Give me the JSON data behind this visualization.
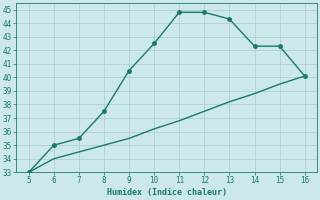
{
  "x": [
    5,
    6,
    7,
    8,
    9,
    10,
    11,
    12,
    13,
    14,
    15,
    16
  ],
  "y_upper": [
    33,
    35,
    35.5,
    37.5,
    40.5,
    42.5,
    44.8,
    44.8,
    44.3,
    42.3,
    42.3,
    40.1
  ],
  "y_lower": [
    33,
    34,
    34.5,
    35,
    35.5,
    36.2,
    36.8,
    37.5,
    38.2,
    38.8,
    39.5,
    40.1
  ],
  "xlim": [
    4.5,
    16.5
  ],
  "ylim": [
    33,
    45.5
  ],
  "xticks": [
    5,
    6,
    7,
    8,
    9,
    10,
    11,
    12,
    13,
    14,
    15,
    16
  ],
  "yticks": [
    33,
    34,
    35,
    36,
    37,
    38,
    39,
    40,
    41,
    42,
    43,
    44,
    45
  ],
  "xlabel": "Humidex (Indice chaleur)",
  "line_color": "#1a7a6e",
  "bg_color": "#cce8e8",
  "grid_color": "#aacccc",
  "marker_size": 2.5,
  "linewidth": 1.0
}
